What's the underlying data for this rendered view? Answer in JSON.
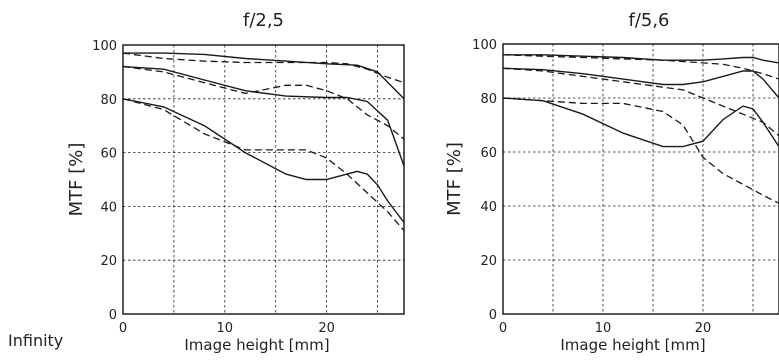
{
  "condition_label": "Infinity",
  "chart_data": [
    {
      "type": "line",
      "title": "f/2,5",
      "xlabel": "Image height [mm]",
      "ylabel": "MTF [%]",
      "xlim": [
        0,
        27.6
      ],
      "ylim": [
        0,
        100
      ],
      "xticks": [
        0,
        10,
        20
      ],
      "yticks": [
        0,
        20,
        40,
        60,
        80,
        100
      ],
      "grid": true,
      "series": [
        {
          "style": "solid",
          "x": [
            0,
            4,
            8,
            12,
            16,
            20,
            23,
            25,
            27.6
          ],
          "y": [
            97,
            97,
            96.5,
            95,
            94,
            93,
            92.5,
            90,
            80
          ]
        },
        {
          "style": "dashed",
          "x": [
            0,
            4,
            8,
            12,
            16,
            20,
            22,
            24,
            26,
            27.6
          ],
          "y": [
            97,
            95,
            94,
            93.5,
            93.5,
            93.5,
            93,
            91,
            88,
            86
          ]
        },
        {
          "style": "solid",
          "x": [
            0,
            4,
            8,
            12,
            16,
            20,
            22,
            24,
            26,
            27.6
          ],
          "y": [
            92,
            91,
            87,
            83,
            81,
            80.5,
            80.5,
            79,
            72,
            55
          ]
        },
        {
          "style": "dashed",
          "x": [
            0,
            4,
            8,
            12,
            16,
            18,
            20,
            22,
            24,
            26,
            27.6
          ],
          "y": [
            92,
            90,
            86,
            82,
            85,
            85,
            83,
            80,
            74,
            70,
            65
          ]
        },
        {
          "style": "solid",
          "x": [
            0,
            4,
            8,
            12,
            16,
            18,
            20,
            22,
            23,
            24,
            25,
            26,
            27.6
          ],
          "y": [
            80,
            77,
            70,
            60,
            52,
            50,
            50,
            52,
            53,
            52,
            48,
            42,
            34
          ]
        },
        {
          "style": "dashed",
          "x": [
            0,
            4,
            8,
            12,
            16,
            18,
            20,
            22,
            24,
            26,
            27.6
          ],
          "y": [
            80,
            76,
            67,
            61,
            61,
            61,
            58,
            52,
            45,
            38,
            31
          ]
        }
      ]
    },
    {
      "type": "line",
      "title": "f/5,6",
      "xlabel": "Image height [mm]",
      "ylabel": "MTF [%]",
      "xlim": [
        0,
        27.6
      ],
      "ylim": [
        0,
        100
      ],
      "xticks": [
        0,
        10,
        20
      ],
      "yticks": [
        0,
        20,
        40,
        60,
        80,
        100
      ],
      "grid": true,
      "series": [
        {
          "style": "solid",
          "x": [
            0,
            4,
            8,
            12,
            16,
            20,
            22,
            24,
            25,
            26,
            27.6
          ],
          "y": [
            96,
            96,
            95.5,
            95,
            94,
            94,
            94.5,
            95,
            95,
            94,
            93
          ]
        },
        {
          "style": "dashed",
          "x": [
            0,
            4,
            8,
            12,
            16,
            20,
            22,
            24,
            26,
            27.6
          ],
          "y": [
            96,
            95.5,
            95,
            94.5,
            94,
            93,
            92.5,
            91,
            89,
            87
          ]
        },
        {
          "style": "solid",
          "x": [
            0,
            4,
            8,
            12,
            16,
            18,
            20,
            22,
            24,
            25,
            26,
            27.6
          ],
          "y": [
            91,
            90.5,
            89,
            87,
            85,
            85,
            86,
            88,
            90,
            90,
            87,
            80
          ]
        },
        {
          "style": "dashed",
          "x": [
            0,
            4,
            8,
            12,
            16,
            18,
            20,
            22,
            24,
            26,
            27.6
          ],
          "y": [
            91,
            90,
            88,
            86,
            84,
            83,
            80,
            77,
            74,
            71,
            66
          ]
        },
        {
          "style": "solid",
          "x": [
            0,
            4,
            8,
            12,
            16,
            18,
            20,
            22,
            24,
            25,
            26,
            27.6
          ],
          "y": [
            80,
            79,
            74,
            67,
            62,
            62,
            64,
            72,
            77,
            76,
            71,
            62
          ]
        },
        {
          "style": "dashed",
          "x": [
            0,
            4,
            8,
            12,
            16,
            18,
            20,
            22,
            24,
            26,
            27.6
          ],
          "y": [
            80,
            79,
            78,
            78,
            75,
            70,
            58,
            52,
            48,
            44,
            41
          ]
        }
      ]
    }
  ]
}
